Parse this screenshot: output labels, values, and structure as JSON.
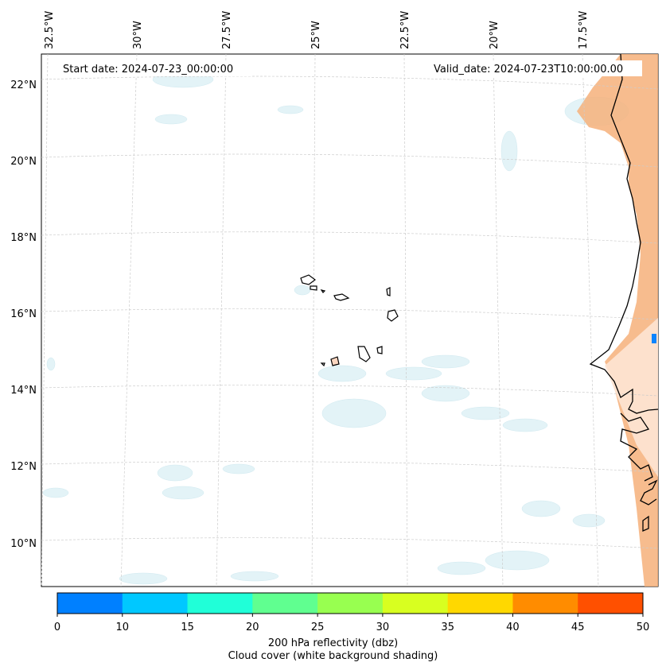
{
  "map": {
    "region": "Cabo Verde / West African coast",
    "lon_labels": [
      "32.5°W",
      "30°W",
      "27.5°W",
      "25°W",
      "22.5°W",
      "20°W",
      "17.5°W"
    ],
    "lat_labels": [
      "22°N",
      "20°N",
      "18°N",
      "16°N",
      "14°N",
      "12°N",
      "10°N"
    ],
    "start_date": "Start date: 2024-07-23_00:00:00",
    "valid_date": "Valid_date: 2024-07-23T10:00:00.00"
  },
  "colorbar": {
    "ticks": [
      "0",
      "10",
      "15",
      "20",
      "25",
      "30",
      "35",
      "40",
      "45",
      "50"
    ],
    "colors": [
      "#0080ff",
      "#00c8ff",
      "#20ffd8",
      "#60ff90",
      "#98ff50",
      "#d8ff20",
      "#ffd800",
      "#ff8c00",
      "#ff5000"
    ],
    "label_line1": "200 hPa reflectivity (dbz)",
    "label_line2": "Cloud cover (white background shading)"
  },
  "colors": {
    "land_orange": "#f4a460",
    "cloud_blue": "#d6eef4",
    "grid": "#cccccc"
  }
}
